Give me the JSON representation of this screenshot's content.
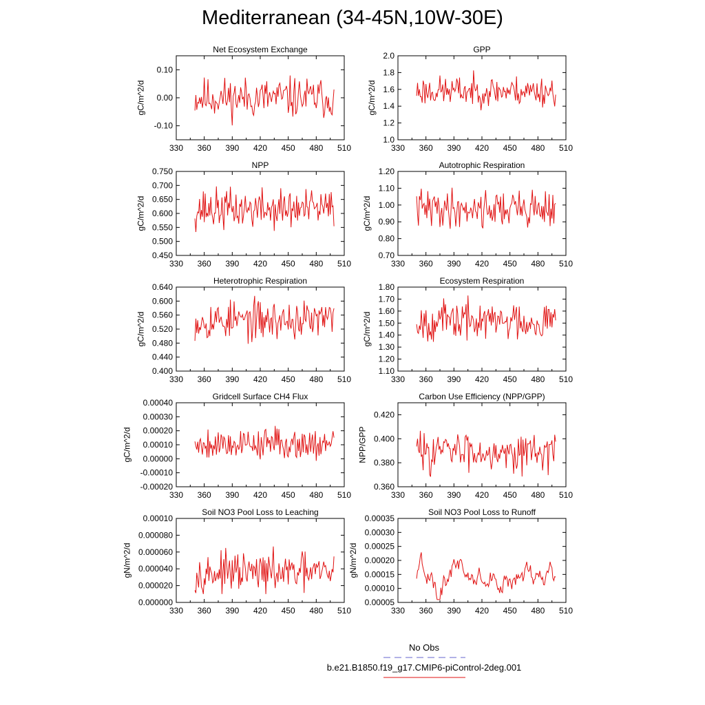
{
  "page_title": "Mediterranean (34-45N,10W-30E)",
  "legend": {
    "obs_label": "No Obs",
    "model_label": "b.e21.B1850.f19_g17.CMIP6-piControl-2deg.001",
    "obs_color": "#6666cc",
    "model_color": "#e01010"
  },
  "chart_data": [
    {
      "type": "line",
      "title": "Net Ecosystem Exchange",
      "ylabel": "gC/m^2/d",
      "xlim": [
        330,
        510
      ],
      "ylim": [
        -0.15,
        0.15
      ],
      "xticks": [
        "330",
        "360",
        "390",
        "420",
        "450",
        "480",
        "510"
      ],
      "yticks": [
        "-0.10",
        "0.00",
        "0.10"
      ],
      "seed": 11,
      "x_start": 350,
      "x_end": 499,
      "base": 0.0,
      "amp": 0.045,
      "minv": -0.12,
      "maxv": 0.14,
      "color": "#e01010"
    },
    {
      "type": "line",
      "title": "GPP",
      "ylabel": "gC/m^2/d",
      "xlim": [
        330,
        510
      ],
      "ylim": [
        1.0,
        2.0
      ],
      "xticks": [
        "330",
        "360",
        "390",
        "420",
        "450",
        "480",
        "510"
      ],
      "yticks": [
        "1.0",
        "1.2",
        "1.4",
        "1.6",
        "1.8",
        "2.0"
      ],
      "seed": 23,
      "x_start": 350,
      "x_end": 499,
      "base": 1.58,
      "amp": 0.11,
      "minv": 1.18,
      "maxv": 1.84,
      "color": "#e01010"
    },
    {
      "type": "line",
      "title": "NPP",
      "ylabel": "gC/m^2/d",
      "xlim": [
        330,
        510
      ],
      "ylim": [
        0.45,
        0.75
      ],
      "xticks": [
        "330",
        "360",
        "390",
        "420",
        "450",
        "480",
        "510"
      ],
      "yticks": [
        "0.450",
        "0.500",
        "0.550",
        "0.600",
        "0.650",
        "0.700",
        "0.750"
      ],
      "seed": 37,
      "x_start": 350,
      "x_end": 499,
      "base": 0.615,
      "amp": 0.045,
      "minv": 0.47,
      "maxv": 0.74,
      "color": "#e01010"
    },
    {
      "type": "line",
      "title": "Autotrophic Respiration",
      "ylabel": "gC/m^2/d",
      "xlim": [
        330,
        510
      ],
      "ylim": [
        0.7,
        1.2
      ],
      "xticks": [
        "330",
        "360",
        "390",
        "420",
        "450",
        "480",
        "510"
      ],
      "yticks": [
        "0.70",
        "0.80",
        "0.90",
        "1.00",
        "1.10",
        "1.20"
      ],
      "seed": 41,
      "x_start": 350,
      "x_end": 499,
      "base": 0.98,
      "amp": 0.07,
      "minv": 0.72,
      "maxv": 1.14,
      "color": "#e01010"
    },
    {
      "type": "line",
      "title": "Heterotrophic Respiration",
      "ylabel": "gC/m^2/d",
      "xlim": [
        330,
        510
      ],
      "ylim": [
        0.4,
        0.64
      ],
      "xticks": [
        "330",
        "360",
        "390",
        "420",
        "450",
        "480",
        "510"
      ],
      "yticks": [
        "0.400",
        "0.440",
        "0.480",
        "0.520",
        "0.560",
        "0.600",
        "0.640"
      ],
      "seed": 53,
      "x_start": 350,
      "x_end": 499,
      "base": 0.545,
      "amp": 0.035,
      "minv": 0.415,
      "maxv": 0.628,
      "color": "#e01010"
    },
    {
      "type": "line",
      "title": "Ecosystem Respiration",
      "ylabel": "gC/m^2/d",
      "xlim": [
        330,
        510
      ],
      "ylim": [
        1.1,
        1.8
      ],
      "xticks": [
        "330",
        "360",
        "390",
        "420",
        "450",
        "480",
        "510"
      ],
      "yticks": [
        "1.10",
        "1.20",
        "1.30",
        "1.40",
        "1.50",
        "1.60",
        "1.70",
        "1.80"
      ],
      "seed": 67,
      "x_start": 350,
      "x_end": 499,
      "base": 1.52,
      "amp": 0.1,
      "minv": 1.14,
      "maxv": 1.73,
      "color": "#e01010"
    },
    {
      "type": "line",
      "title": "Gridcell Surface CH4 Flux",
      "ylabel": "gC/m^2/d",
      "xlim": [
        330,
        510
      ],
      "ylim": [
        -0.0002,
        0.0004
      ],
      "xticks": [
        "330",
        "360",
        "390",
        "420",
        "450",
        "480",
        "510"
      ],
      "yticks": [
        "-0.00020",
        "-0.00010",
        "0.00000",
        "0.00010",
        "0.00020",
        "0.00030",
        "0.00040"
      ],
      "seed": 79,
      "x_start": 350,
      "x_end": 499,
      "base": 0.00011,
      "amp": 7e-05,
      "minv": -0.00011,
      "maxv": 0.00035,
      "color": "#e01010"
    },
    {
      "type": "line",
      "title": "Carbon Use Efficiency (NPP/GPP)",
      "ylabel": "NPP/GPP",
      "xlim": [
        330,
        510
      ],
      "ylim": [
        0.36,
        0.43
      ],
      "xticks": [
        "330",
        "360",
        "390",
        "420",
        "450",
        "480",
        "510"
      ],
      "yticks": [
        "0.360",
        "0.380",
        "0.400",
        "0.420"
      ],
      "seed": 83,
      "x_start": 350,
      "x_end": 499,
      "base": 0.39,
      "amp": 0.01,
      "minv": 0.363,
      "maxv": 0.423,
      "color": "#e01010"
    },
    {
      "type": "line",
      "title": "Soil NO3 Pool Loss to Leaching",
      "ylabel": "gN/m^2/d",
      "xlim": [
        330,
        510
      ],
      "ylim": [
        0.0,
        0.0001
      ],
      "xticks": [
        "330",
        "360",
        "390",
        "420",
        "450",
        "480",
        "510"
      ],
      "yticks": [
        "0.000000",
        "0.000020",
        "0.000040",
        "0.000060",
        "0.000080",
        "0.00010"
      ],
      "seed": 97,
      "x_start": 350,
      "x_end": 499,
      "base": 3.5e-05,
      "amp": 1.4e-05,
      "minv": 1e-05,
      "maxv": 8.7e-05,
      "color": "#e01010"
    },
    {
      "type": "line",
      "title": "Soil NO3 Pool Loss to Runoff",
      "ylabel": "gN/m^2/d",
      "xlim": [
        330,
        510
      ],
      "ylim": [
        5e-05,
        0.00035
      ],
      "xticks": [
        "330",
        "360",
        "390",
        "420",
        "450",
        "480",
        "510"
      ],
      "yticks": [
        "0.00005",
        "0.00010",
        "0.00015",
        "0.00020",
        "0.00025",
        "0.00030",
        "0.00035"
      ],
      "seed": 101,
      "x_start": 350,
      "x_end": 499,
      "base": 0.00015,
      "amp": 5e-05,
      "minv": 6e-05,
      "maxv": 0.00032,
      "color": "#e01010",
      "smooth": true
    }
  ]
}
